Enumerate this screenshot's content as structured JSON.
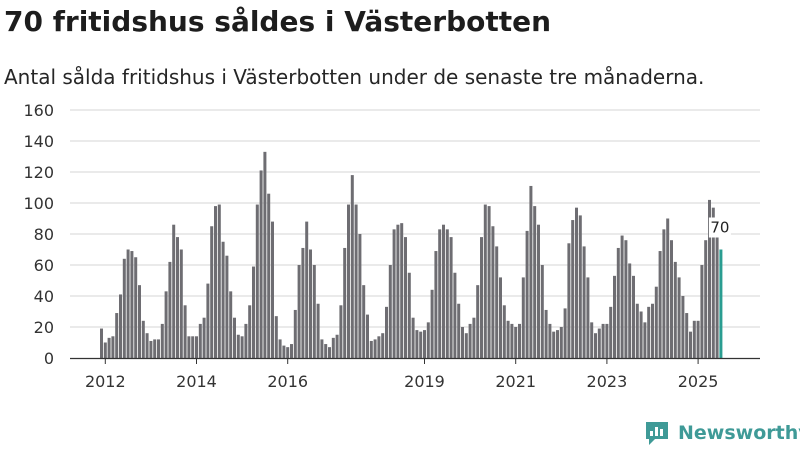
{
  "page": {
    "title": "70 fritidshus såldes i Västerbotten",
    "subtitle": "Antal sålda fritidshus i Västerbotten under de senaste tre månaderna."
  },
  "brand": {
    "name": "Newsworthy",
    "icon": "newsworthy-logo-icon",
    "color": "#3f9a97"
  },
  "chart_data": {
    "type": "bar",
    "title": "70 fritidshus såldes i Västerbotten",
    "subtitle": "Antal sålda fritidshus i Västerbotten under de senaste tre månaderna.",
    "xlabel": "",
    "ylabel": "",
    "ylim": [
      0,
      160
    ],
    "yticks": [
      0,
      20,
      40,
      60,
      80,
      100,
      120,
      140,
      160
    ],
    "grid": true,
    "start": "2011-12",
    "x_tick_labels": [
      {
        "label": "2012",
        "month": "2012-01"
      },
      {
        "label": "2014",
        "month": "2014-01"
      },
      {
        "label": "2016",
        "month": "2016-01"
      },
      {
        "label": "2019",
        "month": "2019-01"
      },
      {
        "label": "2021",
        "month": "2021-01"
      },
      {
        "label": "2023",
        "month": "2023-01"
      },
      {
        "label": "2025",
        "month": "2025-01"
      }
    ],
    "bar_color": "#6e6d72",
    "highlight_color": "#2a9d91",
    "highlight_last": true,
    "last_value_label": "70",
    "values": [
      19,
      10,
      13,
      14,
      29,
      41,
      64,
      70,
      69,
      65,
      47,
      24,
      16,
      11,
      12,
      12,
      22,
      43,
      62,
      86,
      78,
      70,
      34,
      14,
      14,
      14,
      22,
      26,
      48,
      85,
      98,
      99,
      75,
      66,
      43,
      26,
      15,
      14,
      22,
      34,
      59,
      99,
      121,
      133,
      106,
      88,
      27,
      12,
      8,
      7,
      9,
      31,
      60,
      71,
      88,
      70,
      60,
      35,
      12,
      9,
      7,
      13,
      15,
      34,
      71,
      99,
      118,
      99,
      80,
      47,
      28,
      11,
      12,
      14,
      16,
      33,
      60,
      83,
      86,
      87,
      78,
      55,
      26,
      18,
      17,
      18,
      23,
      44,
      69,
      83,
      86,
      83,
      78,
      55,
      35,
      20,
      16,
      22,
      26,
      47,
      78,
      99,
      98,
      85,
      72,
      52,
      34,
      24,
      22,
      20,
      22,
      52,
      82,
      111,
      98,
      86,
      60,
      31,
      22,
      17,
      18,
      20,
      32,
      74,
      89,
      97,
      92,
      72,
      52,
      23,
      16,
      19,
      22,
      22,
      33,
      53,
      71,
      79,
      76,
      61,
      53,
      35,
      30,
      23,
      33,
      35,
      46,
      69,
      83,
      90,
      76,
      62,
      52,
      40,
      29,
      17,
      24,
      24,
      60,
      76,
      102,
      97,
      78,
      70
    ]
  }
}
